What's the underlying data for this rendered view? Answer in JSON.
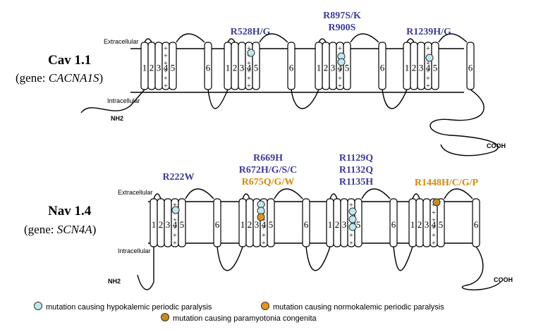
{
  "colors": {
    "blue_label": "#3b3b9a",
    "orange_label": "#d18a0e",
    "hypokalemic_dot": "#bfe8ee",
    "normokalemic_dot": "#e4971c",
    "paramyotonia_dot": "#c88a1c",
    "line": "#000000"
  },
  "membrane": {
    "extracellular": "Extracellular",
    "intracellular": "Intracellular"
  },
  "termini": {
    "n": "NH2",
    "c": "COOH"
  },
  "segment_labels": [
    "1",
    "2",
    "3",
    "4",
    "5",
    "6"
  ],
  "cav": {
    "title": "Cav 1.1",
    "gene_prefix": "(gene: ",
    "gene": "CACNA1S",
    "gene_suffix": ")",
    "mutations": [
      {
        "lines": [
          "R528H/G"
        ]
      },
      {
        "lines": [
          "R897S/K",
          "R900S"
        ]
      },
      {
        "lines": [
          "R1239H/G"
        ]
      }
    ]
  },
  "nav": {
    "title": "Nav 1.4",
    "gene_prefix": "(gene: ",
    "gene": "SCN4A",
    "gene_suffix": ")",
    "mutations": [
      {
        "lines": [
          "R222W"
        ]
      },
      {
        "lines": [
          "R669H",
          "R672H/G/S/C",
          "R675Q/G/W"
        ]
      },
      {
        "lines": [
          "R1129Q",
          "R1132Q",
          "R1135H"
        ]
      },
      {
        "lines": [
          "R1448H/C/G/P"
        ]
      }
    ]
  },
  "legend": {
    "hypokalemic": "mutation causing hypokalemic periodic paralysis",
    "normokalemic": "mutation causing normokalemic periodic paralysis",
    "paramyotonia": "mutation causing paramyotonia congenita"
  }
}
